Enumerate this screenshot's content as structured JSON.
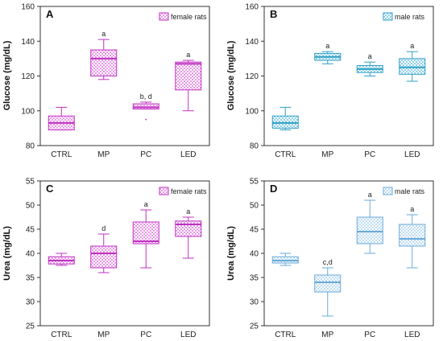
{
  "chart_data": [
    {
      "type": "box",
      "panel_label": "A",
      "ylabel": "Glucose (mg/dL)",
      "ylim": [
        80,
        160
      ],
      "yticks": [
        80,
        100,
        120,
        140,
        160
      ],
      "categories": [
        "CTRL",
        "MP",
        "PC",
        "LED"
      ],
      "legend": "female rats",
      "legend_position": "top-right",
      "color": "#c030c0",
      "fill_color": "#e99ae9",
      "boxes": [
        {
          "category": "CTRL",
          "min": 89,
          "q1": 89,
          "median": 93,
          "q3": 97,
          "max": 102,
          "annotation": ""
        },
        {
          "category": "MP",
          "min": 118,
          "q1": 120,
          "median": 130,
          "q3": 135,
          "max": 141,
          "annotation": "a"
        },
        {
          "category": "PC",
          "min": 101,
          "q1": 101,
          "median": 102,
          "q3": 104,
          "max": 105,
          "annotation": "b, d",
          "outliers": [
            95
          ]
        },
        {
          "category": "LED",
          "min": 100,
          "q1": 112,
          "median": 127,
          "q3": 128,
          "max": 129,
          "annotation": "a"
        }
      ]
    },
    {
      "type": "box",
      "panel_label": "B",
      "ylabel": "Glucose (mg/dL)",
      "ylim": [
        80,
        160
      ],
      "yticks": [
        80,
        100,
        120,
        140,
        160
      ],
      "categories": [
        "CTRL",
        "MP",
        "PC",
        "LED"
      ],
      "legend": "male rats",
      "legend_position": "top-right",
      "color": "#2ea0c4",
      "fill_color": "#8fd0ea",
      "boxes": [
        {
          "category": "CTRL",
          "min": 89,
          "q1": 90,
          "median": 93,
          "q3": 97,
          "max": 102,
          "annotation": ""
        },
        {
          "category": "MP",
          "min": 127,
          "q1": 129,
          "median": 131,
          "q3": 133,
          "max": 134,
          "annotation": "a"
        },
        {
          "category": "PC",
          "min": 120,
          "q1": 122,
          "median": 124,
          "q3": 126,
          "max": 128,
          "annotation": "a"
        },
        {
          "category": "LED",
          "min": 117,
          "q1": 121,
          "median": 125,
          "q3": 130,
          "max": 134,
          "annotation": "a"
        }
      ]
    },
    {
      "type": "box",
      "panel_label": "C",
      "ylabel": "Urea (mg/dL)",
      "ylim": [
        25,
        55
      ],
      "yticks": [
        25,
        30,
        35,
        40,
        45,
        50,
        55
      ],
      "categories": [
        "CTRL",
        "MP",
        "PC",
        "LED"
      ],
      "legend": "female rats",
      "legend_position": "top-right",
      "color": "#c030c0",
      "fill_color": "#e99ae9",
      "boxes": [
        {
          "category": "CTRL",
          "min": 37.5,
          "q1": 37.8,
          "median": 38.5,
          "q3": 39.3,
          "max": 40,
          "annotation": ""
        },
        {
          "category": "MP",
          "min": 36,
          "q1": 37,
          "median": 40,
          "q3": 41.5,
          "max": 44,
          "annotation": "d"
        },
        {
          "category": "PC",
          "min": 37,
          "q1": 42,
          "median": 42.5,
          "q3": 46.5,
          "max": 49,
          "annotation": "a"
        },
        {
          "category": "LED",
          "min": 39,
          "q1": 43.5,
          "median": 46,
          "q3": 46.7,
          "max": 47.5,
          "annotation": "a"
        }
      ]
    },
    {
      "type": "box",
      "panel_label": "D",
      "ylabel": "Urea (mg/dL)",
      "ylim": [
        25,
        55
      ],
      "yticks": [
        25,
        30,
        35,
        40,
        45,
        50,
        55
      ],
      "categories": [
        "CTRL",
        "MP",
        "PC",
        "LED"
      ],
      "legend": "male rats",
      "legend_position": "top-right",
      "color": "#6aaad8",
      "fill_color": "#bfdcf2",
      "boxes": [
        {
          "category": "CTRL",
          "min": 37.5,
          "q1": 38,
          "median": 38.5,
          "q3": 39.3,
          "max": 40,
          "annotation": ""
        },
        {
          "category": "MP",
          "min": 27,
          "q1": 32,
          "median": 34,
          "q3": 35.5,
          "max": 37,
          "annotation": "c,d"
        },
        {
          "category": "PC",
          "min": 40,
          "q1": 42,
          "median": 44.5,
          "q3": 47.5,
          "max": 51,
          "annotation": "a"
        },
        {
          "category": "LED",
          "min": 37,
          "q1": 41.5,
          "median": 43,
          "q3": 46,
          "max": 48,
          "annotation": "a"
        }
      ]
    }
  ]
}
